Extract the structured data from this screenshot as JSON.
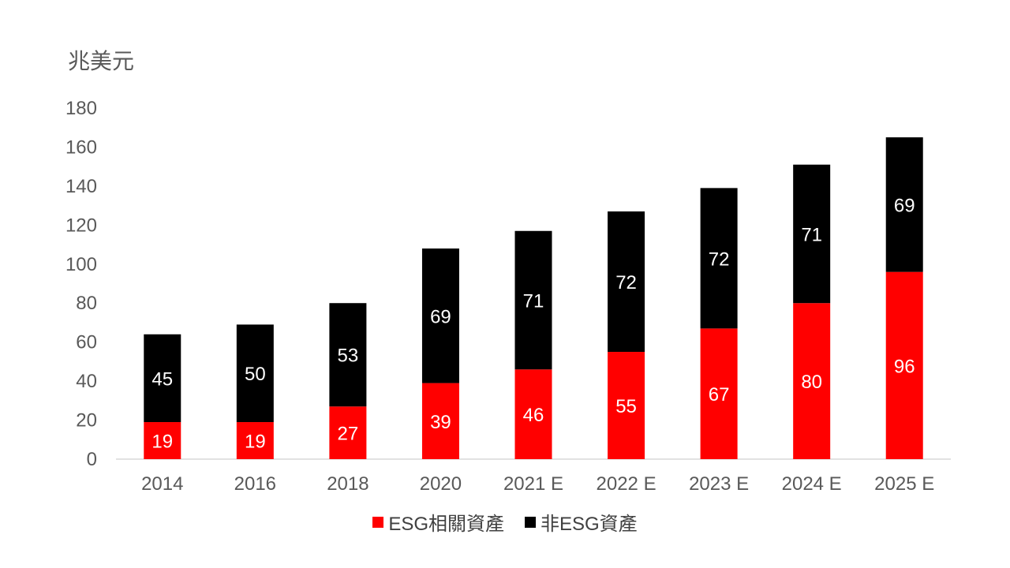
{
  "unit_label": "兆美元",
  "colors": {
    "esg": "#FF0000",
    "non_esg": "#000000",
    "axis_text": "#595959",
    "axis_line": "#D9D9D9"
  },
  "legend": [
    {
      "label": "ESG相關資產",
      "color": "#FF0000"
    },
    {
      "label": "非ESG資產",
      "color": "#000000"
    }
  ],
  "chart_data": {
    "type": "bar",
    "stacked": true,
    "categories": [
      "2014",
      "2016",
      "2018",
      "2020",
      "2021 E",
      "2022 E",
      "2023 E",
      "2024 E",
      "2025 E"
    ],
    "series": [
      {
        "name": "ESG相關資產",
        "values": [
          19,
          19,
          27,
          39,
          46,
          55,
          67,
          80,
          96
        ]
      },
      {
        "name": "非ESG資產",
        "values": [
          45,
          50,
          53,
          69,
          71,
          72,
          72,
          71,
          69
        ]
      }
    ],
    "ylim": [
      0,
      180
    ],
    "yticks": [
      0,
      20,
      40,
      60,
      80,
      100,
      120,
      140,
      160,
      180
    ],
    "ylabel": "兆美元",
    "grid": false,
    "legend_position": "bottom"
  }
}
